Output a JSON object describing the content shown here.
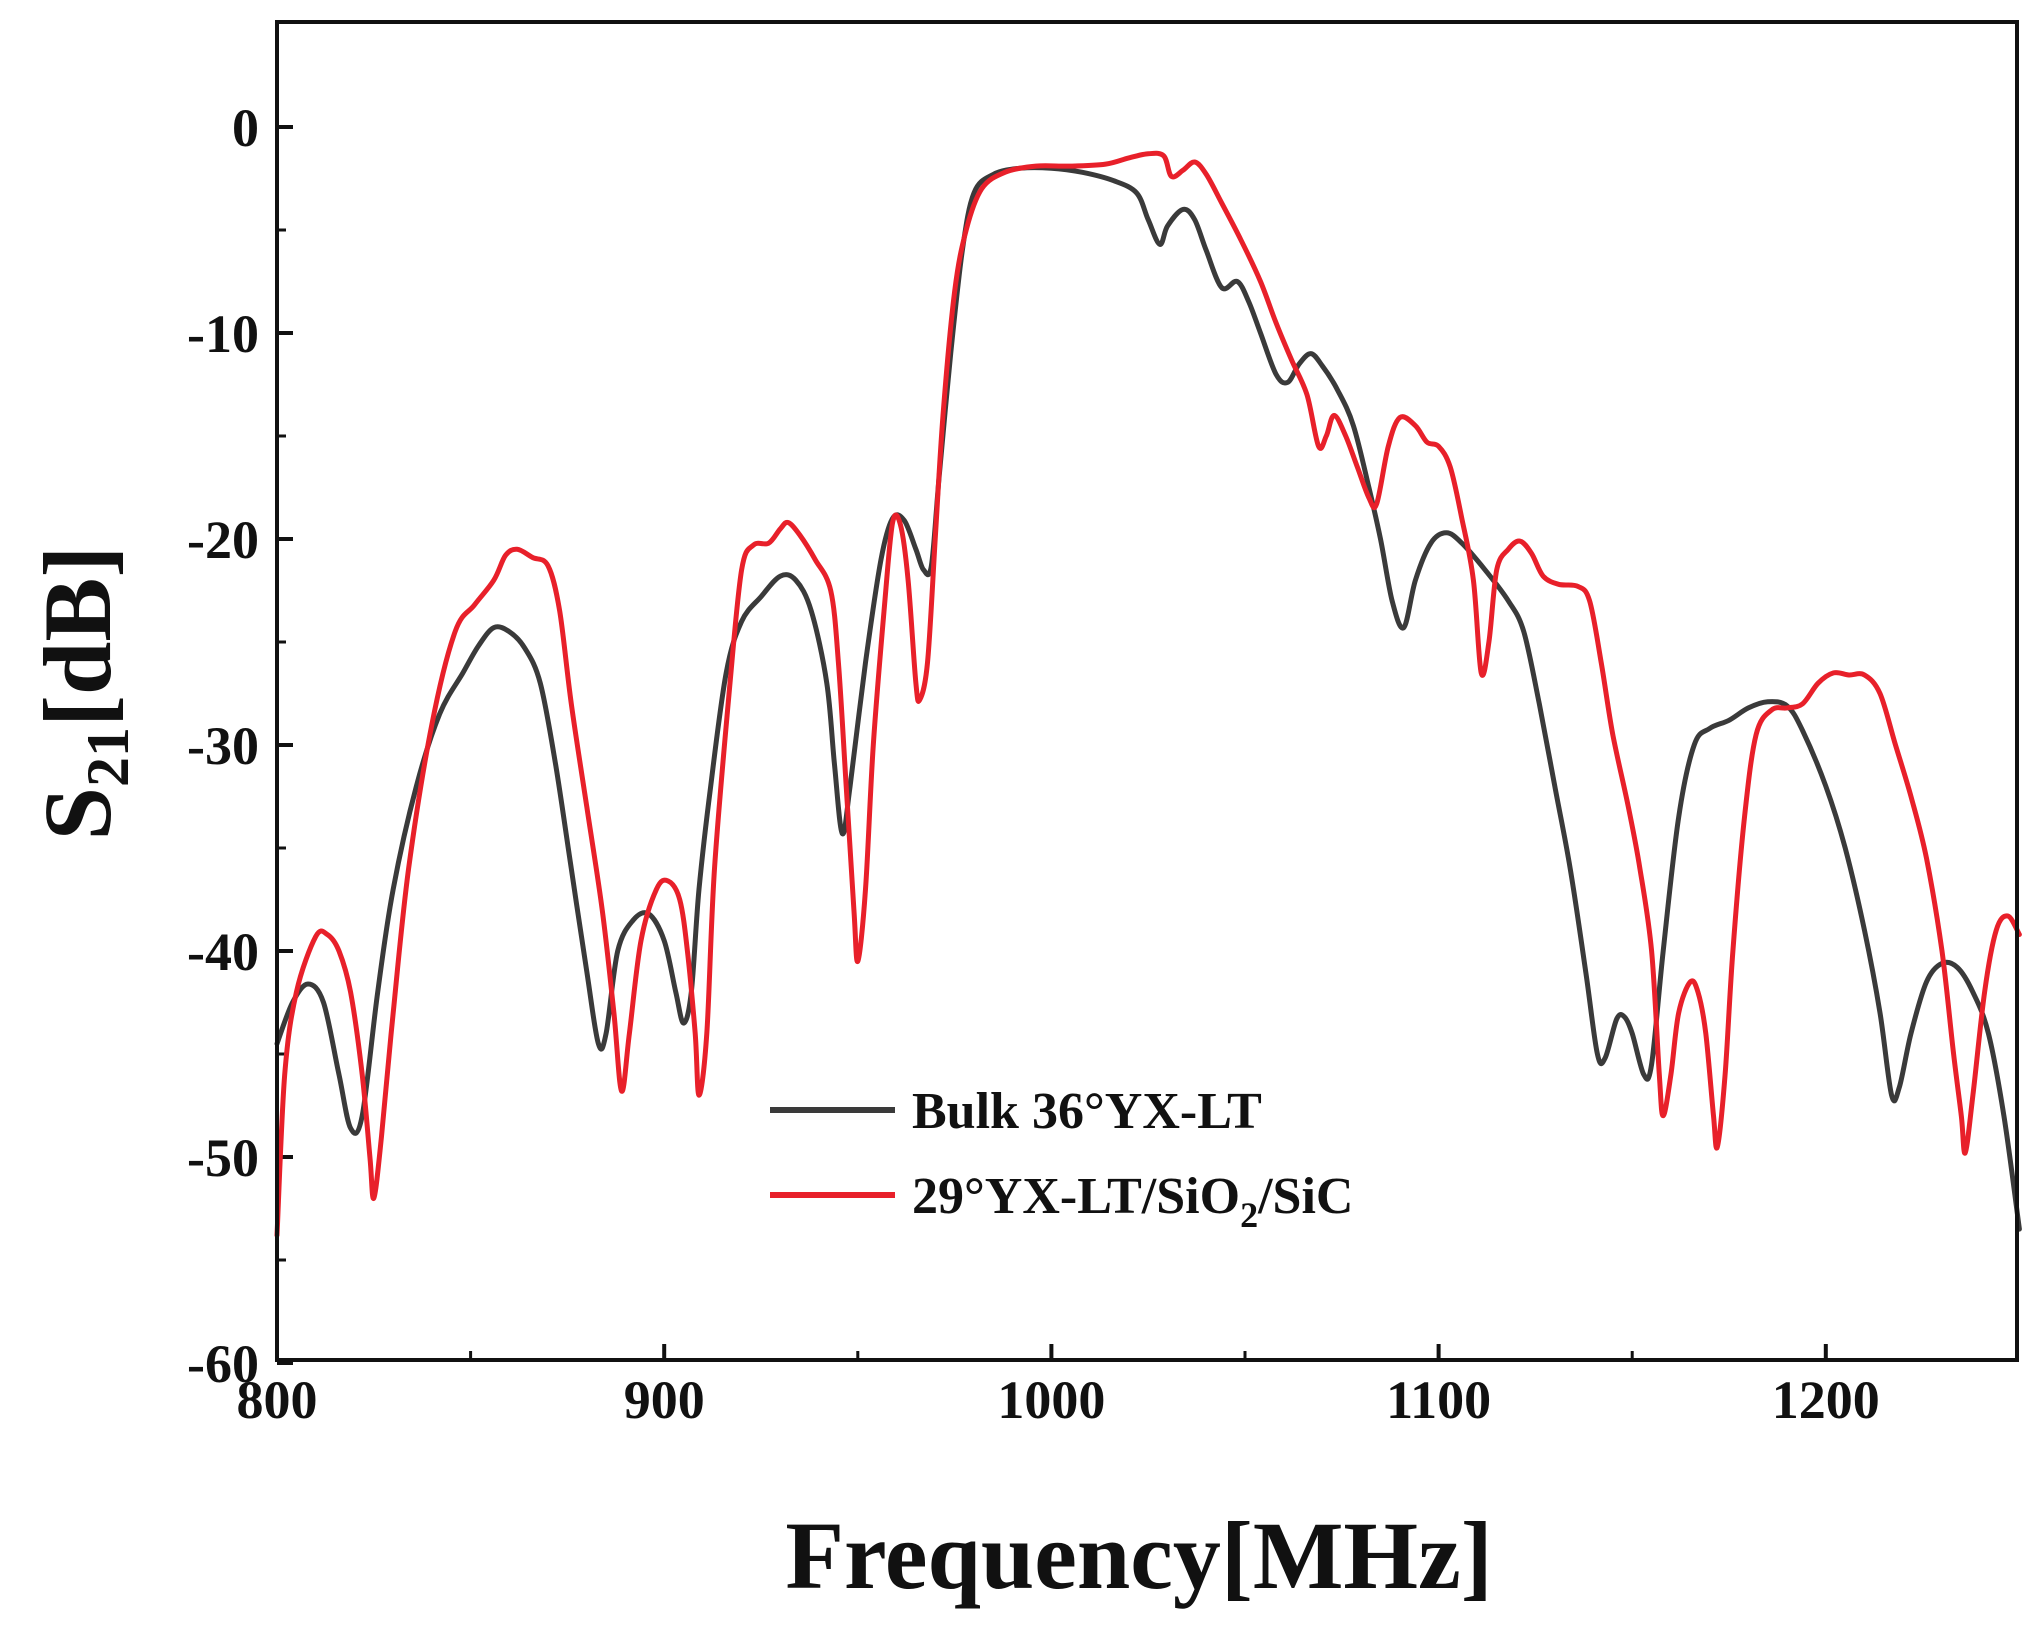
{
  "chart_data": {
    "type": "line",
    "title": "",
    "xlabel": "Frequency[MHz]",
    "ylabel": {
      "main": "S",
      "sub": "21",
      "rest": "[dB]"
    },
    "xlim": [
      800,
      1250
    ],
    "ylim": [
      -60,
      5
    ],
    "x_ticks": [
      800,
      900,
      1000,
      1100,
      1200
    ],
    "y_ticks": [
      0,
      -10,
      -20,
      -30,
      -40,
      -50,
      -60
    ],
    "x_tick_labels": [
      "800",
      "900",
      "1000",
      "1100",
      "1200"
    ],
    "y_tick_labels": [
      "0",
      "-10",
      "-20",
      "-30",
      "-40",
      "-50",
      "-60"
    ],
    "grid": false,
    "legend_position": "lower-center",
    "series": [
      {
        "name": "Bulk 36°YX-LT",
        "legend": {
          "text": "Bulk 36°YX-LT"
        },
        "color": "#3a3a3a",
        "points": [
          [
            800,
            -44.5
          ],
          [
            804,
            -42.5
          ],
          [
            808,
            -41.6
          ],
          [
            812,
            -42.5
          ],
          [
            816,
            -46
          ],
          [
            819,
            -48.6
          ],
          [
            822,
            -48
          ],
          [
            826,
            -42
          ],
          [
            830,
            -37
          ],
          [
            836,
            -32
          ],
          [
            842,
            -28.5
          ],
          [
            848,
            -26.5
          ],
          [
            852,
            -25.2
          ],
          [
            856,
            -24.3
          ],
          [
            860,
            -24.5
          ],
          [
            864,
            -25.3
          ],
          [
            868,
            -27
          ],
          [
            872,
            -31
          ],
          [
            876,
            -36
          ],
          [
            880,
            -41
          ],
          [
            883,
            -44.5
          ],
          [
            885,
            -44
          ],
          [
            888,
            -40
          ],
          [
            892,
            -38.5
          ],
          [
            896,
            -38.2
          ],
          [
            900,
            -39.5
          ],
          [
            903,
            -42
          ],
          [
            905,
            -43.5
          ],
          [
            907,
            -42
          ],
          [
            909,
            -37
          ],
          [
            912,
            -32
          ],
          [
            916,
            -26.5
          ],
          [
            920,
            -24
          ],
          [
            925,
            -22.8
          ],
          [
            930,
            -21.8
          ],
          [
            934,
            -22
          ],
          [
            938,
            -23.5
          ],
          [
            942,
            -27
          ],
          [
            944,
            -31
          ],
          [
            946,
            -34.3
          ],
          [
            948,
            -32
          ],
          [
            952,
            -26
          ],
          [
            956,
            -21
          ],
          [
            959,
            -19
          ],
          [
            962,
            -19.1
          ],
          [
            965,
            -20.5
          ],
          [
            967,
            -21.5
          ],
          [
            969,
            -21.3
          ],
          [
            971,
            -17
          ],
          [
            974,
            -11
          ],
          [
            977,
            -6
          ],
          [
            980,
            -3.2
          ],
          [
            985,
            -2.3
          ],
          [
            992,
            -2
          ],
          [
            1000,
            -2
          ],
          [
            1008,
            -2.2
          ],
          [
            1016,
            -2.6
          ],
          [
            1022,
            -3.2
          ],
          [
            1025,
            -4.5
          ],
          [
            1028,
            -5.7
          ],
          [
            1030,
            -4.8
          ],
          [
            1034,
            -4
          ],
          [
            1037,
            -4.5
          ],
          [
            1040,
            -6
          ],
          [
            1044,
            -7.8
          ],
          [
            1048,
            -7.5
          ],
          [
            1051,
            -8.5
          ],
          [
            1054,
            -10
          ],
          [
            1058,
            -12
          ],
          [
            1061,
            -12.4
          ],
          [
            1064,
            -11.5
          ],
          [
            1067,
            -11
          ],
          [
            1070,
            -11.6
          ],
          [
            1074,
            -12.8
          ],
          [
            1078,
            -14.5
          ],
          [
            1082,
            -17.5
          ],
          [
            1085,
            -20
          ],
          [
            1088,
            -23
          ],
          [
            1091,
            -24.3
          ],
          [
            1094,
            -22
          ],
          [
            1098,
            -20.2
          ],
          [
            1102,
            -19.7
          ],
          [
            1106,
            -20.2
          ],
          [
            1112,
            -21.5
          ],
          [
            1118,
            -23
          ],
          [
            1122,
            -24.5
          ],
          [
            1126,
            -28
          ],
          [
            1130,
            -32
          ],
          [
            1134,
            -36
          ],
          [
            1138,
            -41
          ],
          [
            1141,
            -45
          ],
          [
            1143,
            -45.2
          ],
          [
            1146,
            -43.3
          ],
          [
            1148,
            -43.2
          ],
          [
            1150,
            -44
          ],
          [
            1153,
            -46
          ],
          [
            1155,
            -45.5
          ],
          [
            1158,
            -40
          ],
          [
            1162,
            -33.5
          ],
          [
            1166,
            -30
          ],
          [
            1170,
            -29.2
          ],
          [
            1175,
            -28.8
          ],
          [
            1180,
            -28.2
          ],
          [
            1185,
            -27.9
          ],
          [
            1190,
            -28.1
          ],
          [
            1194,
            -29.3
          ],
          [
            1200,
            -32
          ],
          [
            1205,
            -35
          ],
          [
            1210,
            -39
          ],
          [
            1214,
            -43
          ],
          [
            1217,
            -47
          ],
          [
            1219,
            -46.6
          ],
          [
            1222,
            -44
          ],
          [
            1226,
            -41.5
          ],
          [
            1230,
            -40.6
          ],
          [
            1234,
            -40.8
          ],
          [
            1238,
            -42
          ],
          [
            1242,
            -44
          ],
          [
            1246,
            -48
          ],
          [
            1250,
            -53.5
          ]
        ]
      },
      {
        "name": "29°YX-LT/SiO2/SiC",
        "legend": {
          "pre": "29°YX-LT/SiO",
          "sub": "2",
          "post": "/SiC"
        },
        "color": "#e8202a",
        "points": [
          [
            800,
            -53.8
          ],
          [
            802,
            -46
          ],
          [
            805,
            -42
          ],
          [
            810,
            -39.3
          ],
          [
            813,
            -39.2
          ],
          [
            816,
            -40
          ],
          [
            819,
            -42
          ],
          [
            822,
            -46
          ],
          [
            824,
            -50
          ],
          [
            825,
            -52
          ],
          [
            827,
            -49
          ],
          [
            830,
            -43
          ],
          [
            834,
            -36
          ],
          [
            840,
            -29
          ],
          [
            846,
            -24.5
          ],
          [
            851,
            -23.2
          ],
          [
            856,
            -22
          ],
          [
            859,
            -20.8
          ],
          [
            862,
            -20.5
          ],
          [
            866,
            -20.9
          ],
          [
            870,
            -21.3
          ],
          [
            873,
            -23.5
          ],
          [
            876,
            -28
          ],
          [
            880,
            -33
          ],
          [
            884,
            -38
          ],
          [
            887,
            -43
          ],
          [
            889,
            -46.8
          ],
          [
            891,
            -44
          ],
          [
            894,
            -39.5
          ],
          [
            898,
            -37
          ],
          [
            901,
            -36.6
          ],
          [
            904,
            -37.5
          ],
          [
            906,
            -40
          ],
          [
            908,
            -44
          ],
          [
            909,
            -47
          ],
          [
            911,
            -44
          ],
          [
            913,
            -36
          ],
          [
            917,
            -27
          ],
          [
            920,
            -21.5
          ],
          [
            923,
            -20.3
          ],
          [
            927,
            -20.2
          ],
          [
            930,
            -19.5
          ],
          [
            932,
            -19.2
          ],
          [
            935,
            -19.8
          ],
          [
            939,
            -21
          ],
          [
            943,
            -22.5
          ],
          [
            945,
            -26
          ],
          [
            947,
            -32
          ],
          [
            949,
            -38
          ],
          [
            950,
            -40.5
          ],
          [
            952,
            -37
          ],
          [
            954,
            -30
          ],
          [
            957,
            -23
          ],
          [
            959,
            -19.2
          ],
          [
            961,
            -19.3
          ],
          [
            963,
            -22
          ],
          [
            965,
            -27
          ],
          [
            966,
            -27.8
          ],
          [
            968,
            -26
          ],
          [
            970,
            -20
          ],
          [
            972,
            -14
          ],
          [
            975,
            -8
          ],
          [
            978,
            -5
          ],
          [
            982,
            -3
          ],
          [
            988,
            -2.2
          ],
          [
            996,
            -1.9
          ],
          [
            1005,
            -1.9
          ],
          [
            1014,
            -1.8
          ],
          [
            1020,
            -1.5
          ],
          [
            1025,
            -1.3
          ],
          [
            1029,
            -1.4
          ],
          [
            1031,
            -2.4
          ],
          [
            1034,
            -2.1
          ],
          [
            1037,
            -1.7
          ],
          [
            1040,
            -2.3
          ],
          [
            1044,
            -3.7
          ],
          [
            1049,
            -5.5
          ],
          [
            1054,
            -7.5
          ],
          [
            1058,
            -9.5
          ],
          [
            1062,
            -11.3
          ],
          [
            1066,
            -13
          ],
          [
            1069,
            -15.5
          ],
          [
            1071,
            -15
          ],
          [
            1073,
            -14
          ],
          [
            1076,
            -15
          ],
          [
            1079,
            -16.5
          ],
          [
            1082,
            -18
          ],
          [
            1084,
            -18.3
          ],
          [
            1087,
            -15.5
          ],
          [
            1090,
            -14.1
          ],
          [
            1094,
            -14.5
          ],
          [
            1097,
            -15.3
          ],
          [
            1100,
            -15.5
          ],
          [
            1103,
            -16.5
          ],
          [
            1106,
            -19
          ],
          [
            1109,
            -22
          ],
          [
            1111,
            -26.5
          ],
          [
            1113,
            -25
          ],
          [
            1115,
            -21.5
          ],
          [
            1118,
            -20.5
          ],
          [
            1121,
            -20.1
          ],
          [
            1124,
            -20.7
          ],
          [
            1127,
            -21.8
          ],
          [
            1131,
            -22.2
          ],
          [
            1136,
            -22.3
          ],
          [
            1139,
            -23
          ],
          [
            1142,
            -26
          ],
          [
            1145,
            -29.5
          ],
          [
            1149,
            -33
          ],
          [
            1152,
            -36
          ],
          [
            1155,
            -40
          ],
          [
            1157,
            -46
          ],
          [
            1158,
            -48
          ],
          [
            1160,
            -46
          ],
          [
            1162,
            -43
          ],
          [
            1165,
            -41.5
          ],
          [
            1167,
            -42
          ],
          [
            1169,
            -44
          ],
          [
            1171,
            -48
          ],
          [
            1172,
            -49.5
          ],
          [
            1174,
            -46
          ],
          [
            1176,
            -40
          ],
          [
            1179,
            -33.5
          ],
          [
            1182,
            -29.5
          ],
          [
            1186,
            -28.3
          ],
          [
            1190,
            -28.2
          ],
          [
            1194,
            -28
          ],
          [
            1198,
            -27
          ],
          [
            1202,
            -26.5
          ],
          [
            1206,
            -26.6
          ],
          [
            1210,
            -26.6
          ],
          [
            1214,
            -27.5
          ],
          [
            1218,
            -30
          ],
          [
            1222,
            -32.5
          ],
          [
            1226,
            -35.5
          ],
          [
            1230,
            -40
          ],
          [
            1233,
            -45
          ],
          [
            1235,
            -48
          ],
          [
            1236,
            -49.8
          ],
          [
            1238,
            -47
          ],
          [
            1241,
            -42
          ],
          [
            1244,
            -39
          ],
          [
            1247,
            -38.3
          ],
          [
            1250,
            -39.2
          ]
        ]
      }
    ]
  }
}
